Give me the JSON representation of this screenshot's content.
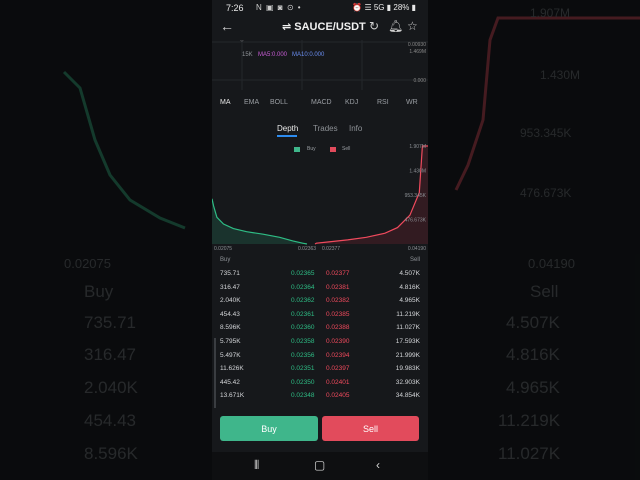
{
  "status": {
    "time": "7:26",
    "icons": "N ▣ ◙ ⊙ •",
    "right": "⏰ ☰ 5G ▮ 28% ▮"
  },
  "header": {
    "pair": "⇌ SAUCE/USDT"
  },
  "mini_chart": {
    "vol_label": "15K",
    "ma5": "MA5:0.000",
    "ma10": "MA10:0.000",
    "axis": [
      "0.00930",
      "1.469M",
      "0.000"
    ]
  },
  "indicators": [
    "MA",
    "EMA",
    "BOLL",
    "MACD",
    "KDJ",
    "RSI",
    "WR"
  ],
  "tabs": [
    "Depth",
    "Trades",
    "Info"
  ],
  "colors": {
    "buy": "#2ebd85",
    "sell": "#f04a5d",
    "accent": "#2d8cf0"
  },
  "chart_data": {
    "type": "area",
    "legend": [
      "Buy",
      "Sell"
    ],
    "x_ticks": [
      "0.02075",
      "0.02363",
      "0.02377",
      "0.04190"
    ],
    "y_ticks": [
      "1.907M",
      "1.430M",
      "953.345K",
      "476.673K"
    ],
    "ylim": [
      0,
      1907000
    ],
    "series": [
      {
        "name": "Buy",
        "x": [
          0.02075,
          0.0208,
          0.0209,
          0.0211,
          0.0214,
          0.0218,
          0.0223,
          0.0228,
          0.0232,
          0.0235,
          0.02363
        ],
        "y": [
          880000,
          740000,
          520000,
          390000,
          300000,
          240000,
          190000,
          130000,
          60000,
          15000,
          0
        ]
      },
      {
        "name": "Sell",
        "x": [
          0.02377,
          0.024,
          0.026,
          0.029,
          0.032,
          0.035,
          0.037,
          0.039,
          0.0405,
          0.041,
          0.0419
        ],
        "y": [
          0,
          15000,
          40000,
          80000,
          130000,
          210000,
          320000,
          560000,
          1000000,
          1907000,
          1907000
        ]
      }
    ]
  },
  "book": {
    "buy_header": "Buy",
    "sell_header": "Sell",
    "rows": [
      {
        "buy_qty": "735.71",
        "buy_price": "0.02365",
        "sell_price": "0.02377",
        "sell_qty": "4.507K"
      },
      {
        "buy_qty": "316.47",
        "buy_price": "0.02364",
        "sell_price": "0.02381",
        "sell_qty": "4.816K"
      },
      {
        "buy_qty": "2.040K",
        "buy_price": "0.02362",
        "sell_price": "0.02382",
        "sell_qty": "4.965K"
      },
      {
        "buy_qty": "454.43",
        "buy_price": "0.02361",
        "sell_price": "0.02385",
        "sell_qty": "11.219K"
      },
      {
        "buy_qty": "8.596K",
        "buy_price": "0.02360",
        "sell_price": "0.02388",
        "sell_qty": "11.027K"
      },
      {
        "buy_qty": "5.795K",
        "buy_price": "0.02358",
        "sell_price": "0.02390",
        "sell_qty": "17.593K"
      },
      {
        "buy_qty": "5.497K",
        "buy_price": "0.02356",
        "sell_price": "0.02394",
        "sell_qty": "21.999K"
      },
      {
        "buy_qty": "11.626K",
        "buy_price": "0.02351",
        "sell_price": "0.02397",
        "sell_qty": "19.983K"
      },
      {
        "buy_qty": "445.42",
        "buy_price": "0.02350",
        "sell_price": "0.02401",
        "sell_qty": "32.903K"
      },
      {
        "buy_qty": "13.671K",
        "buy_price": "0.02348",
        "sell_price": "0.02405",
        "sell_qty": "34.854K"
      }
    ]
  },
  "actions": {
    "buy_label": "Buy",
    "sell_label": "Sell"
  },
  "background_left": {
    "tick": "0.02075",
    "header": "Buy",
    "values": [
      "735.71",
      "316.47",
      "2.040K",
      "454.43",
      "8.596K"
    ]
  },
  "background_right": {
    "ticks": [
      "1.907M",
      "1.430M",
      "953.345K",
      "476.673K",
      "0.04190"
    ],
    "header": "Sell",
    "values": [
      "4.507K",
      "4.816K",
      "4.965K",
      "11.219K",
      "11.027K"
    ]
  }
}
